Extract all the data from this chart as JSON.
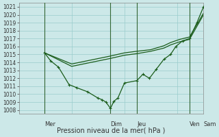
{
  "bg_color": "#cce8e8",
  "grid_color": "#99cccc",
  "line_color": "#1a5c1a",
  "vline_color": "#336633",
  "xlabel": "Pression niveau de la mer( hPa )",
  "ylim": [
    1007.5,
    1021.5
  ],
  "yticks": [
    1008,
    1009,
    1010,
    1011,
    1012,
    1013,
    1014,
    1015,
    1016,
    1017,
    1018,
    1019,
    1020,
    1021
  ],
  "xlim": [
    0,
    7.0
  ],
  "vlines": [
    0.97,
    3.47,
    4.47,
    6.47
  ],
  "day_labels": [
    "Mer",
    "Dim",
    "Jeu",
    "Ven",
    "Sam"
  ],
  "series1_x": [
    0.97,
    1.2,
    1.5,
    1.9,
    2.2,
    2.6,
    3.0,
    3.15,
    3.3,
    3.47,
    3.6,
    3.75,
    4.0,
    4.47,
    4.7,
    4.95,
    5.2,
    5.5,
    5.75,
    5.95,
    6.2,
    6.47,
    6.75,
    7.0
  ],
  "series1_y": [
    1015.2,
    1014.2,
    1013.4,
    1011.2,
    1010.8,
    1010.3,
    1009.5,
    1009.3,
    1009.0,
    1008.2,
    1009.1,
    1009.5,
    1011.4,
    1011.7,
    1012.5,
    1012.0,
    1013.1,
    1014.4,
    1015.0,
    1016.0,
    1016.7,
    1017.0,
    1019.0,
    1021.0
  ],
  "series2_x": [
    0.97,
    2.0,
    3.47,
    4.0,
    4.47,
    5.0,
    5.5,
    5.75,
    6.1,
    6.47,
    7.0
  ],
  "series2_y": [
    1015.2,
    1013.8,
    1014.8,
    1015.2,
    1015.4,
    1015.6,
    1016.1,
    1016.5,
    1016.9,
    1017.2,
    1020.2
  ],
  "series3_x": [
    0.97,
    2.0,
    3.47,
    4.0,
    4.47,
    5.0,
    5.5,
    5.75,
    6.1,
    6.47,
    7.0
  ],
  "series3_y": [
    1015.2,
    1013.5,
    1014.5,
    1014.9,
    1015.1,
    1015.4,
    1015.8,
    1016.2,
    1016.6,
    1016.9,
    1020.0
  ]
}
